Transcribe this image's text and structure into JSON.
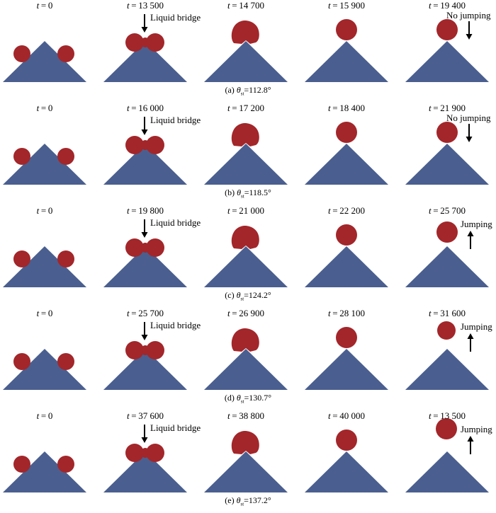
{
  "rows": [
    {
      "caption": {
        "prefix": "(a) ",
        "symbol": "θ",
        "subscript": "st",
        "value": "=112.8°"
      },
      "frames": [
        {
          "t": "0",
          "state": "separate"
        },
        {
          "t": "13 500",
          "state": "bridge",
          "annotation": "Liquid bridge"
        },
        {
          "t": "14 700",
          "state": "merging"
        },
        {
          "t": "15 900",
          "state": "sphere"
        },
        {
          "t": "19 400",
          "state": "sphere",
          "annotation": "No jumping",
          "arrow": "down"
        }
      ]
    },
    {
      "caption": {
        "prefix": "(b) ",
        "symbol": "θ",
        "subscript": "st",
        "value": "=118.5°"
      },
      "frames": [
        {
          "t": "0",
          "state": "separate"
        },
        {
          "t": "16 000",
          "state": "bridge",
          "annotation": "Liquid bridge"
        },
        {
          "t": "17 200",
          "state": "merging"
        },
        {
          "t": "18 400",
          "state": "sphere"
        },
        {
          "t": "21 900",
          "state": "sphere",
          "annotation": "No jumping",
          "arrow": "down"
        }
      ]
    },
    {
      "caption": {
        "prefix": "(c) ",
        "symbol": "θ",
        "subscript": "st",
        "value": "=124.2°"
      },
      "frames": [
        {
          "t": "0",
          "state": "separate"
        },
        {
          "t": "19 800",
          "state": "bridge",
          "annotation": "Liquid bridge"
        },
        {
          "t": "21 000",
          "state": "merging"
        },
        {
          "t": "22 200",
          "state": "sphere"
        },
        {
          "t": "25 700",
          "state": "lifted",
          "annotation": "Jumping",
          "arrow": "up"
        }
      ]
    },
    {
      "caption": {
        "prefix": "(d) ",
        "symbol": "θ",
        "subscript": "st",
        "value": "=130.7°"
      },
      "frames": [
        {
          "t": "0",
          "state": "separate"
        },
        {
          "t": "25 700",
          "state": "bridge",
          "annotation": "Liquid bridge"
        },
        {
          "t": "26 900",
          "state": "merging"
        },
        {
          "t": "28 100",
          "state": "sphere"
        },
        {
          "t": "31 600",
          "state": "jumping",
          "annotation": "Jumping",
          "arrow": "up"
        }
      ]
    },
    {
      "caption": {
        "prefix": "(e) ",
        "symbol": "θ",
        "subscript": "st",
        "value": "=137.2°"
      },
      "frames": [
        {
          "t": "0",
          "state": "separate"
        },
        {
          "t": "37 600",
          "state": "bridge",
          "annotation": "Liquid bridge"
        },
        {
          "t": "38 800",
          "state": "merging"
        },
        {
          "t": "40 000",
          "state": "sphere"
        },
        {
          "t": "13 500",
          "state": "jumping-high",
          "annotation": "Jumping",
          "arrow": "up"
        }
      ]
    }
  ],
  "colors": {
    "droplet": "#a3262a",
    "substrate": "#4a5f8f",
    "arrow": "#000000"
  }
}
